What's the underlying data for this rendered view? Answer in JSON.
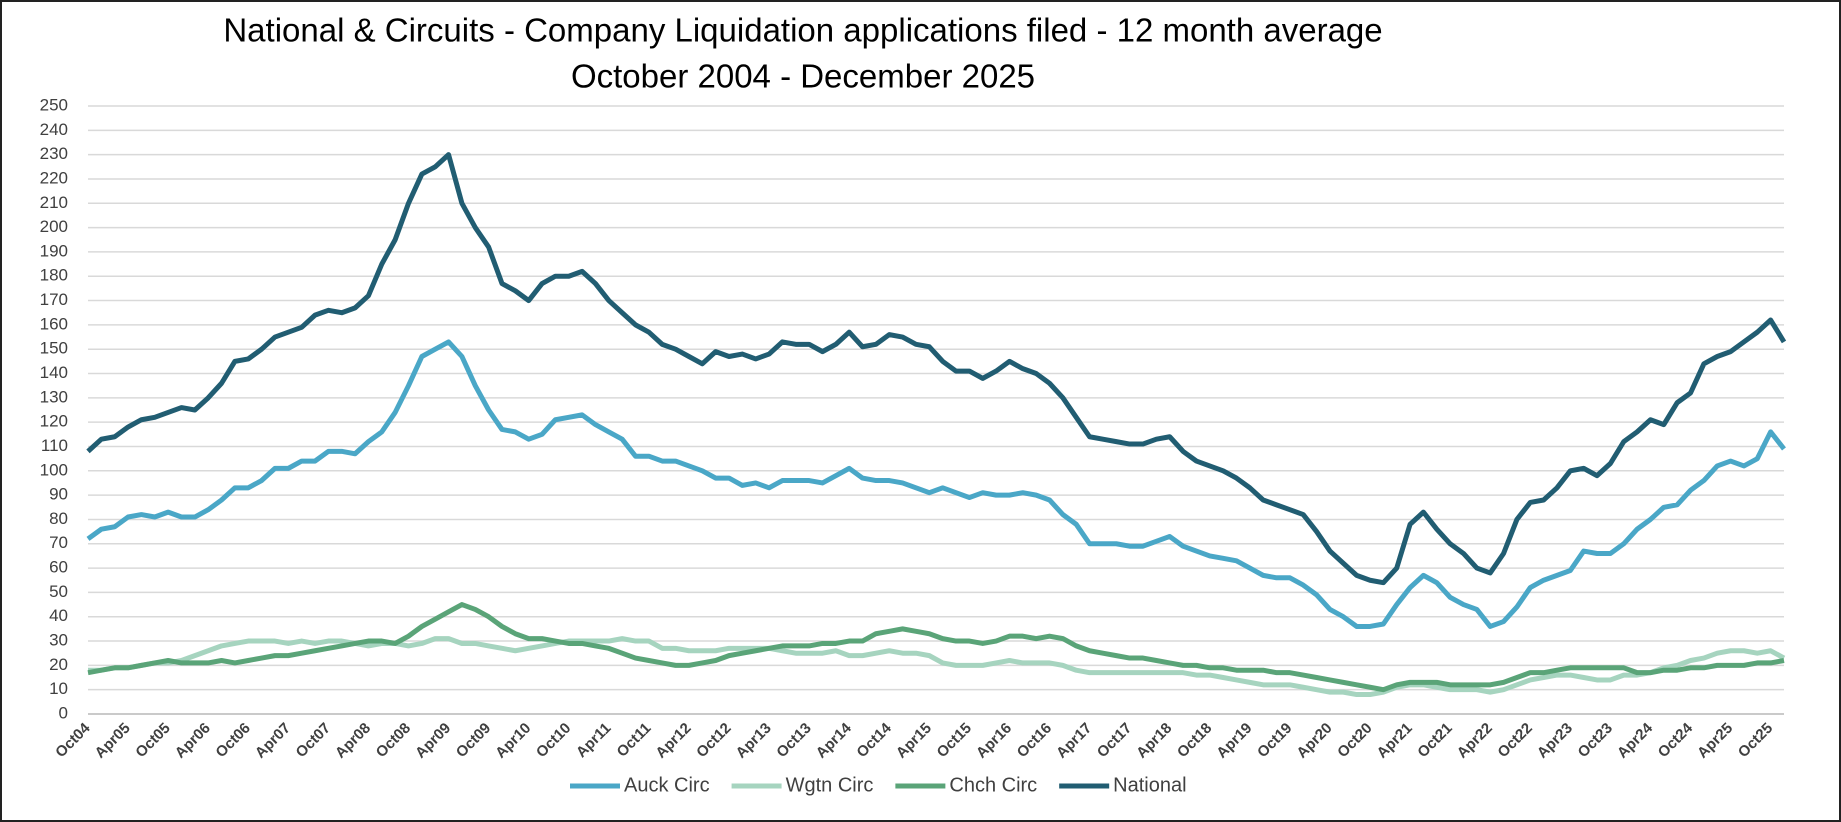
{
  "chart_data": {
    "type": "line",
    "title": "National & Circuits - Company Liquidation applications filed - 12 month average",
    "subtitle": "October 2004 - December 2025",
    "categories": [
      "Oct04",
      null,
      null,
      "Apr05",
      null,
      null,
      "Oct05",
      null,
      null,
      "Apr06",
      null,
      null,
      "Oct06",
      null,
      null,
      "Apr07",
      null,
      null,
      "Oct07",
      null,
      null,
      "Apr08",
      null,
      null,
      "Oct08",
      null,
      null,
      "Apr09",
      null,
      null,
      "Oct09",
      null,
      null,
      "Apr10",
      null,
      null,
      "Oct10",
      null,
      null,
      "Apr11",
      null,
      null,
      "Oct11",
      null,
      null,
      "Apr12",
      null,
      null,
      "Oct12",
      null,
      null,
      "Apr13",
      null,
      null,
      "Oct13",
      null,
      null,
      "Apr14",
      null,
      null,
      "Oct14",
      null,
      null,
      "Apr15",
      null,
      null,
      "Oct15",
      null,
      null,
      "Apr16",
      null,
      null,
      "Oct16",
      null,
      null,
      "Apr17",
      null,
      null,
      "Oct17",
      null,
      null,
      "Apr18",
      null,
      null,
      "Oct18",
      null,
      null,
      "Apr19",
      null,
      null,
      "Oct19",
      null,
      null,
      "Apr20",
      null,
      null,
      "Oct20",
      null,
      null,
      "Apr21",
      null,
      null,
      "Oct21",
      null,
      null,
      "Apr22",
      null,
      null,
      "Oct22",
      null,
      null,
      "Apr23",
      null,
      null,
      "Oct23",
      null,
      null,
      "Apr24",
      null,
      null,
      "Oct24",
      null,
      null,
      "Apr25",
      null,
      null,
      "Oct25",
      null
    ],
    "series": [
      {
        "name": "Auck Circ",
        "color": "#4aa7c7",
        "values": [
          72,
          76,
          77,
          81,
          82,
          81,
          83,
          81,
          81,
          84,
          88,
          93,
          93,
          96,
          101,
          101,
          104,
          104,
          108,
          108,
          107,
          112,
          116,
          124,
          135,
          147,
          150,
          153,
          147,
          135,
          125,
          117,
          116,
          113,
          115,
          121,
          122,
          123,
          119,
          116,
          113,
          106,
          106,
          104,
          104,
          102,
          100,
          97,
          97,
          94,
          95,
          93,
          96,
          96,
          96,
          95,
          98,
          101,
          97,
          96,
          96,
          95,
          93,
          91,
          93,
          91,
          89,
          91,
          90,
          90,
          91,
          90,
          88,
          82,
          78,
          70,
          70,
          70,
          69,
          69,
          71,
          73,
          69,
          67,
          65,
          64,
          63,
          60,
          57,
          56,
          56,
          53,
          49,
          43,
          40,
          36,
          36,
          37,
          45,
          52,
          57,
          54,
          48,
          45,
          43,
          36,
          38,
          44,
          52,
          55,
          57,
          59,
          67,
          66,
          66,
          70,
          76,
          80,
          85,
          86,
          92,
          96,
          102,
          104,
          102,
          105,
          116,
          109
        ]
      },
      {
        "name": "Wgtn Circ",
        "color": "#a6d4bf",
        "values": [
          18,
          18,
          19,
          19,
          20,
          21,
          21,
          22,
          24,
          26,
          28,
          29,
          30,
          30,
          30,
          29,
          30,
          29,
          30,
          30,
          29,
          28,
          29,
          29,
          28,
          29,
          31,
          31,
          29,
          29,
          28,
          27,
          26,
          27,
          28,
          29,
          30,
          30,
          30,
          30,
          31,
          30,
          30,
          27,
          27,
          26,
          26,
          26,
          27,
          27,
          27,
          27,
          26,
          25,
          25,
          25,
          26,
          24,
          24,
          25,
          26,
          25,
          25,
          24,
          21,
          20,
          20,
          20,
          21,
          22,
          21,
          21,
          21,
          20,
          18,
          17,
          17,
          17,
          17,
          17,
          17,
          17,
          17,
          16,
          16,
          15,
          14,
          13,
          12,
          12,
          12,
          11,
          10,
          9,
          9,
          8,
          8,
          9,
          11,
          12,
          12,
          11,
          10,
          10,
          10,
          9,
          10,
          12,
          14,
          15,
          16,
          16,
          15,
          14,
          14,
          16,
          16,
          17,
          19,
          20,
          22,
          23,
          25,
          26,
          26,
          25,
          26,
          23
        ]
      },
      {
        "name": "Chch Circ",
        "color": "#5aa478",
        "values": [
          17,
          18,
          19,
          19,
          20,
          21,
          22,
          21,
          21,
          21,
          22,
          21,
          22,
          23,
          24,
          24,
          25,
          26,
          27,
          28,
          29,
          30,
          30,
          29,
          32,
          36,
          39,
          42,
          45,
          43,
          40,
          36,
          33,
          31,
          31,
          30,
          29,
          29,
          28,
          27,
          25,
          23,
          22,
          21,
          20,
          20,
          21,
          22,
          24,
          25,
          26,
          27,
          28,
          28,
          28,
          29,
          29,
          30,
          30,
          33,
          34,
          35,
          34,
          33,
          31,
          30,
          30,
          29,
          30,
          32,
          32,
          31,
          32,
          31,
          28,
          26,
          25,
          24,
          23,
          23,
          22,
          21,
          20,
          20,
          19,
          19,
          18,
          18,
          18,
          17,
          17,
          16,
          15,
          14,
          13,
          12,
          11,
          10,
          12,
          13,
          13,
          13,
          12,
          12,
          12,
          12,
          13,
          15,
          17,
          17,
          18,
          19,
          19,
          19,
          19,
          19,
          17,
          17,
          18,
          18,
          19,
          19,
          20,
          20,
          20,
          21,
          21,
          22
        ]
      },
      {
        "name": "National",
        "color": "#215d72",
        "values": [
          108,
          113,
          114,
          118,
          121,
          122,
          124,
          126,
          125,
          130,
          136,
          145,
          146,
          150,
          155,
          157,
          159,
          164,
          166,
          165,
          167,
          172,
          185,
          195,
          210,
          222,
          225,
          230,
          210,
          200,
          192,
          177,
          174,
          170,
          177,
          180,
          180,
          182,
          177,
          170,
          165,
          160,
          157,
          152,
          150,
          147,
          144,
          149,
          147,
          148,
          146,
          148,
          153,
          152,
          152,
          149,
          152,
          157,
          151,
          152,
          156,
          155,
          152,
          151,
          145,
          141,
          141,
          138,
          141,
          145,
          142,
          140,
          136,
          130,
          122,
          114,
          113,
          112,
          111,
          111,
          113,
          114,
          108,
          104,
          102,
          100,
          97,
          93,
          88,
          86,
          84,
          82,
          75,
          67,
          62,
          57,
          55,
          54,
          60,
          78,
          83,
          76,
          70,
          66,
          60,
          58,
          66,
          80,
          87,
          88,
          93,
          100,
          101,
          98,
          103,
          112,
          116,
          121,
          119,
          128,
          132,
          144,
          147,
          149,
          153,
          157,
          162,
          153
        ]
      }
    ],
    "ylim": [
      0,
      250
    ],
    "yticks": [
      0,
      10,
      20,
      30,
      40,
      50,
      60,
      70,
      80,
      90,
      100,
      110,
      120,
      130,
      140,
      150,
      160,
      170,
      180,
      190,
      200,
      210,
      220,
      230,
      240,
      250
    ],
    "grid": true,
    "legend": "bottom"
  }
}
